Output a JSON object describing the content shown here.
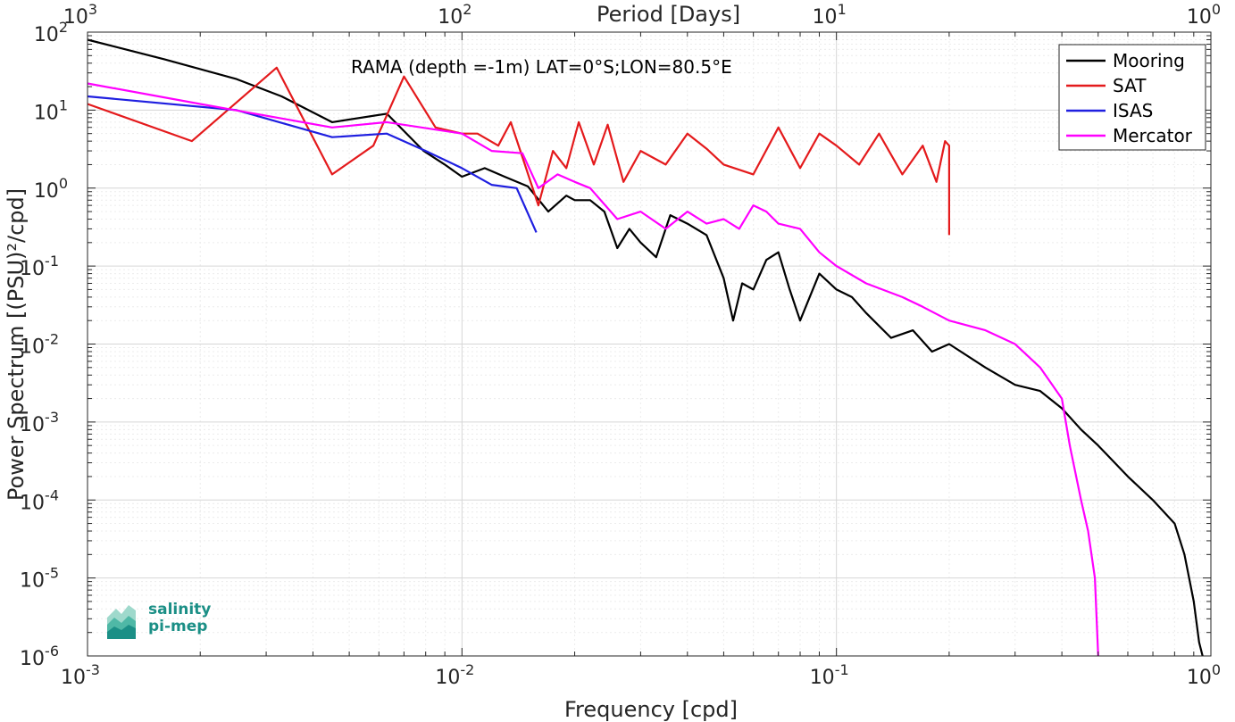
{
  "chart_data": {
    "type": "line",
    "title": "RAMA (depth =-1m) LAT=0°S;LON=80.5°E",
    "xlabel": "Frequency [cpd]",
    "ylabel": "Power Spectrum [(PSU)²/cpd]",
    "x2label": "Period [Days]",
    "xscale": "log",
    "yscale": "log",
    "xlim": [
      0.001,
      1
    ],
    "ylim": [
      1e-06,
      100
    ],
    "grid": true,
    "legend_position": "top-right",
    "series": [
      {
        "name": "Mooring",
        "color": "#000000",
        "x": [
          0.001,
          0.0016,
          0.0025,
          0.0033,
          0.0045,
          0.0063,
          0.0079,
          0.009,
          0.01,
          0.0115,
          0.013,
          0.015,
          0.017,
          0.019,
          0.02,
          0.022,
          0.024,
          0.026,
          0.028,
          0.03,
          0.033,
          0.036,
          0.04,
          0.045,
          0.05,
          0.053,
          0.056,
          0.06,
          0.065,
          0.07,
          0.075,
          0.08,
          0.09,
          0.1,
          0.11,
          0.12,
          0.14,
          0.16,
          0.18,
          0.2,
          0.25,
          0.3,
          0.35,
          0.4,
          0.45,
          0.5,
          0.6,
          0.7,
          0.8,
          0.85,
          0.9,
          0.93,
          0.95
        ],
        "y": [
          80,
          45,
          25,
          15,
          7,
          9,
          3,
          2,
          1.4,
          1.8,
          1.4,
          1.05,
          0.5,
          0.8,
          0.7,
          0.7,
          0.5,
          0.17,
          0.3,
          0.2,
          0.13,
          0.45,
          0.35,
          0.25,
          0.07,
          0.02,
          0.06,
          0.05,
          0.12,
          0.15,
          0.05,
          0.02,
          0.08,
          0.05,
          0.04,
          0.025,
          0.012,
          0.015,
          0.008,
          0.01,
          0.005,
          0.003,
          0.0025,
          0.0015,
          0.0008,
          0.0005,
          0.0002,
          0.0001,
          5e-05,
          2e-05,
          5e-06,
          1.5e-06,
          1e-06
        ]
      },
      {
        "name": "SAT",
        "color": "#e41a1c",
        "x": [
          0.001,
          0.0019,
          0.0032,
          0.0045,
          0.0058,
          0.007,
          0.0085,
          0.01,
          0.011,
          0.0125,
          0.0135,
          0.0145,
          0.016,
          0.0175,
          0.019,
          0.0205,
          0.0225,
          0.0245,
          0.027,
          0.03,
          0.035,
          0.04,
          0.045,
          0.05,
          0.06,
          0.07,
          0.08,
          0.09,
          0.1,
          0.115,
          0.13,
          0.15,
          0.17,
          0.185,
          0.195,
          0.2,
          0.2
        ],
        "y": [
          12,
          4,
          35,
          1.5,
          3.5,
          27,
          6,
          5,
          5,
          3.5,
          7,
          2.5,
          0.6,
          3,
          1.8,
          7,
          2,
          6.5,
          1.2,
          3,
          2,
          5,
          3.2,
          2,
          1.5,
          6,
          1.8,
          5,
          3.5,
          2,
          5,
          1.5,
          3.5,
          1.2,
          4,
          3.5,
          0.25
        ]
      },
      {
        "name": "ISAS",
        "color": "#1f1fe0",
        "x": [
          0.001,
          0.0025,
          0.0045,
          0.0063,
          0.008,
          0.01,
          0.012,
          0.014,
          0.0158
        ],
        "y": [
          15,
          10,
          4.5,
          5,
          3,
          1.8,
          1.1,
          1,
          0.27
        ]
      },
      {
        "name": "Mercator",
        "color": "#ff00ff",
        "x": [
          0.001,
          0.002,
          0.0045,
          0.0063,
          0.01,
          0.012,
          0.0145,
          0.016,
          0.018,
          0.02,
          0.022,
          0.026,
          0.03,
          0.035,
          0.04,
          0.045,
          0.05,
          0.055,
          0.06,
          0.065,
          0.07,
          0.08,
          0.09,
          0.1,
          0.12,
          0.15,
          0.17,
          0.2,
          0.25,
          0.3,
          0.35,
          0.4,
          0.42,
          0.45,
          0.47,
          0.49,
          0.5
        ],
        "y": [
          22,
          12,
          6,
          7,
          5,
          3,
          2.8,
          1,
          1.5,
          1.2,
          1,
          0.4,
          0.5,
          0.3,
          0.5,
          0.35,
          0.4,
          0.3,
          0.6,
          0.5,
          0.35,
          0.3,
          0.15,
          0.1,
          0.06,
          0.04,
          0.03,
          0.02,
          0.015,
          0.01,
          0.005,
          0.002,
          0.0005,
          0.0001,
          4e-05,
          1e-05,
          1e-06
        ]
      }
    ]
  },
  "axes": {
    "bottom_ticks": [
      "10",
      "10",
      "10",
      "10"
    ],
    "bottom_exps": [
      "-3",
      "-2",
      "-1",
      "0"
    ],
    "top_ticks": [
      "10",
      "10",
      "10",
      "10"
    ],
    "top_exps": [
      "3",
      "2",
      "1",
      "0"
    ],
    "left_ticks": [
      "10",
      "10",
      "10",
      "10",
      "10",
      "10",
      "10",
      "10",
      "10"
    ],
    "left_exps": [
      "2",
      "1",
      "0",
      "-1",
      "-2",
      "-3",
      "-4",
      "-5",
      "-6"
    ]
  },
  "logo": {
    "line1": "salinity",
    "line2": "pi-mep"
  }
}
